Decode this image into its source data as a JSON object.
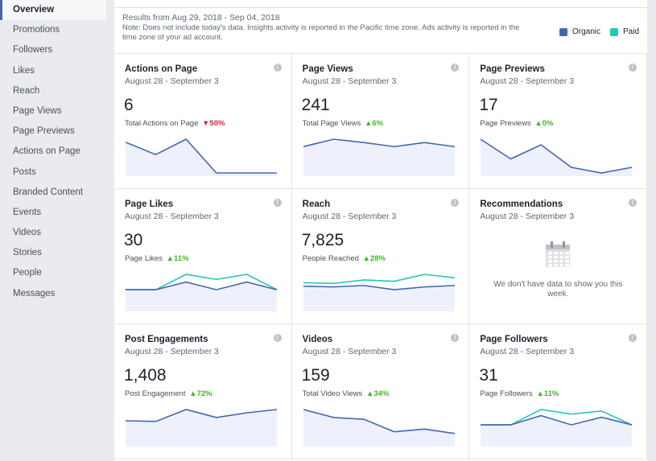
{
  "sidebar": {
    "items": [
      {
        "label": "Overview",
        "active": true
      },
      {
        "label": "Promotions"
      },
      {
        "label": "Followers"
      },
      {
        "label": "Likes"
      },
      {
        "label": "Reach"
      },
      {
        "label": "Page Views"
      },
      {
        "label": "Page Previews"
      },
      {
        "label": "Actions on Page"
      },
      {
        "label": "Posts"
      },
      {
        "label": "Branded Content"
      },
      {
        "label": "Events"
      },
      {
        "label": "Videos"
      },
      {
        "label": "Stories"
      },
      {
        "label": "People"
      },
      {
        "label": "Messages"
      }
    ]
  },
  "header": {
    "range": "Results from Aug 29, 2018 - Sep 04, 2018",
    "note": "Note: Does not include today's data. Insights activity is reported in the Pacific time zone. Ads activity is reported in the time zone of your ad account.",
    "legend": [
      {
        "label": "Organic",
        "color": "#4267b2"
      },
      {
        "label": "Paid",
        "color": "#23c9b0"
      }
    ]
  },
  "colors": {
    "organic": "#4267b2",
    "paid": "#23c9b0",
    "fill": "#eef0fb",
    "up": "#42b72a",
    "down": "#e41e3f"
  },
  "cards": [
    {
      "title": "Actions on Page",
      "subtitle": "August 28 - September 3",
      "value": "6",
      "metric": "Total Actions on Page",
      "change": "50%",
      "direction": "down",
      "organic": [
        5,
        3,
        5.5,
        0,
        0,
        0
      ]
    },
    {
      "title": "Page Views",
      "subtitle": "August 28 - September 3",
      "value": "241",
      "metric": "Total Page Views",
      "change": "6%",
      "direction": "up",
      "organic": [
        39,
        50,
        45,
        39,
        45,
        39
      ]
    },
    {
      "title": "Page Previews",
      "subtitle": "August 28 - September 3",
      "value": "17",
      "metric": "Page Previews",
      "change": "0%",
      "direction": "up",
      "organic": [
        6,
        2.5,
        5,
        1,
        0,
        1
      ]
    },
    {
      "title": "Page Likes",
      "subtitle": "August 28 - September 3",
      "value": "30",
      "metric": "Page Likes",
      "change": "11%",
      "direction": "up",
      "organic": [
        4,
        4,
        5.5,
        4,
        5.5,
        4
      ],
      "paid": [
        4,
        4,
        7,
        6,
        7,
        4
      ]
    },
    {
      "title": "Reach",
      "subtitle": "August 28 - September 3",
      "value": "7,825",
      "metric": "People Reached",
      "change": "28%",
      "direction": "up",
      "organic": [
        1000,
        950,
        1050,
        750,
        950,
        1050
      ],
      "paid": [
        1250,
        1200,
        1450,
        1350,
        1850,
        1600
      ]
    },
    {
      "title": "Recommendations",
      "subtitle": "August 28 - September 3",
      "empty": true,
      "empty_text": "We don't have data to show you this week.",
      "icon": "calendar-icon"
    },
    {
      "title": "Post Engagements",
      "subtitle": "August 28 - September 3",
      "value": "1,408",
      "metric": "Post Engagement",
      "change": "72%",
      "direction": "up",
      "organic": [
        170,
        165,
        255,
        195,
        230,
        255
      ]
    },
    {
      "title": "Videos",
      "subtitle": "August 28 - September 3",
      "value": "159",
      "metric": "Total Video Views",
      "change": "34%",
      "direction": "up",
      "organic": [
        38,
        29,
        27,
        13,
        16,
        11
      ]
    },
    {
      "title": "Page Followers",
      "subtitle": "August 28 - September 3",
      "value": "31",
      "metric": "Page Followers",
      "change": "11%",
      "direction": "up",
      "organic": [
        3,
        3,
        6,
        3,
        5.5,
        3
      ],
      "paid": [
        3,
        3,
        8,
        6.5,
        7.5,
        3
      ]
    }
  ]
}
